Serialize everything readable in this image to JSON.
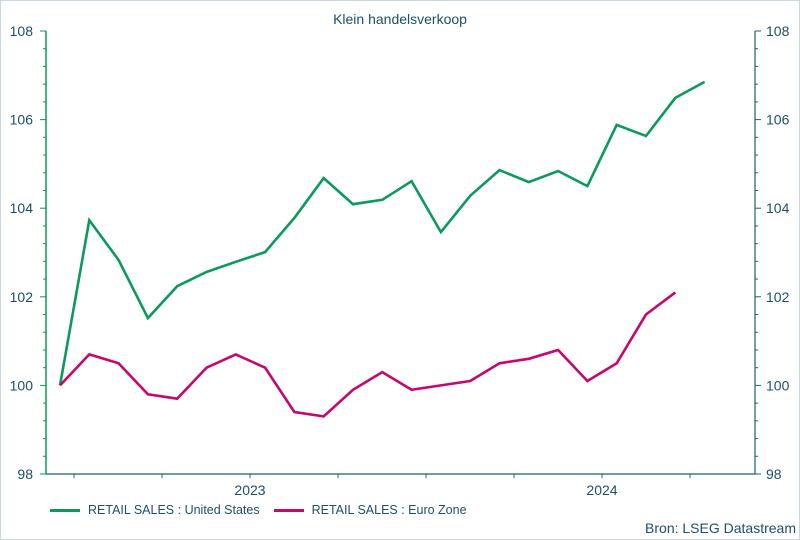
{
  "chart_data": {
    "type": "line",
    "title": "Klein handelsverkoop",
    "xlabel": "",
    "ylabel": "",
    "ylim": [
      98,
      108
    ],
    "yticks": [
      98,
      100,
      102,
      104,
      106,
      108
    ],
    "yticks_right": [
      98,
      100,
      102,
      104,
      106,
      108
    ],
    "xtick_labels": [
      "2023",
      "2024"
    ],
    "grid": false,
    "legend_position": "bottom-left",
    "source": "Bron: LSEG Datastream",
    "series": [
      {
        "name": "RETAIL SALES : United States",
        "color": "#0a9a5c",
        "values": [
          100.0,
          103.73,
          102.83,
          101.52,
          102.24,
          102.56,
          102.79,
          103.01,
          103.78,
          104.68,
          104.09,
          104.19,
          104.61,
          103.46,
          104.28,
          104.86,
          104.59,
          104.84,
          104.5,
          105.88,
          105.63,
          106.49,
          106.85
        ]
      },
      {
        "name": "RETAIL SALES : Euro Zone",
        "color": "#c8066e",
        "values": [
          100.0,
          100.7,
          100.5,
          99.8,
          99.7,
          100.4,
          100.7,
          100.4,
          99.4,
          99.3,
          99.9,
          100.3,
          99.9,
          100.0,
          100.1,
          100.5,
          100.6,
          100.8,
          100.1,
          100.5,
          101.6,
          102.1
        ]
      }
    ]
  },
  "legend": {
    "us_label": "RETAIL SALES : United States",
    "ez_label": "RETAIL SALES : Euro Zone"
  },
  "axis": {
    "left_color": "#0a9a5c",
    "right_color": "#1d5f78"
  }
}
